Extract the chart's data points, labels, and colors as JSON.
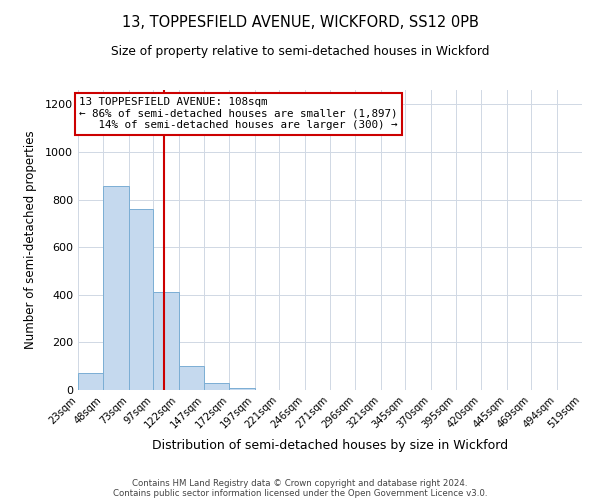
{
  "title_line1": "13, TOPPESFIELD AVENUE, WICKFORD, SS12 0PB",
  "title_line2": "Size of property relative to semi-detached houses in Wickford",
  "xlabel": "Distribution of semi-detached houses by size in Wickford",
  "ylabel": "Number of semi-detached properties",
  "bin_edges": [
    23,
    48,
    73,
    97,
    122,
    147,
    172,
    197,
    221,
    246,
    271,
    296,
    321,
    345,
    370,
    395,
    420,
    445,
    469,
    494,
    519
  ],
  "bin_counts": [
    70,
    857,
    762,
    410,
    100,
    28,
    10,
    0,
    0,
    0,
    0,
    0,
    0,
    0,
    0,
    0,
    0,
    0,
    0,
    0
  ],
  "bar_color": "#c5d9ee",
  "bar_edge_color": "#7baed4",
  "property_size": 108,
  "vline_color": "#cc0000",
  "annotation_text_line1": "13 TOPPESFIELD AVENUE: 108sqm",
  "annotation_text_line2": "← 86% of semi-detached houses are smaller (1,897)",
  "annotation_text_line3": "   14% of semi-detached houses are larger (300) →",
  "annotation_box_edge_color": "#cc0000",
  "annotation_box_face_color": "#ffffff",
  "ylim": [
    0,
    1260
  ],
  "yticks": [
    0,
    200,
    400,
    600,
    800,
    1000,
    1200
  ],
  "grid_color": "#d0d8e4",
  "background_color": "#ffffff",
  "footer_line1": "Contains HM Land Registry data © Crown copyright and database right 2024.",
  "footer_line2": "Contains public sector information licensed under the Open Government Licence v3.0."
}
